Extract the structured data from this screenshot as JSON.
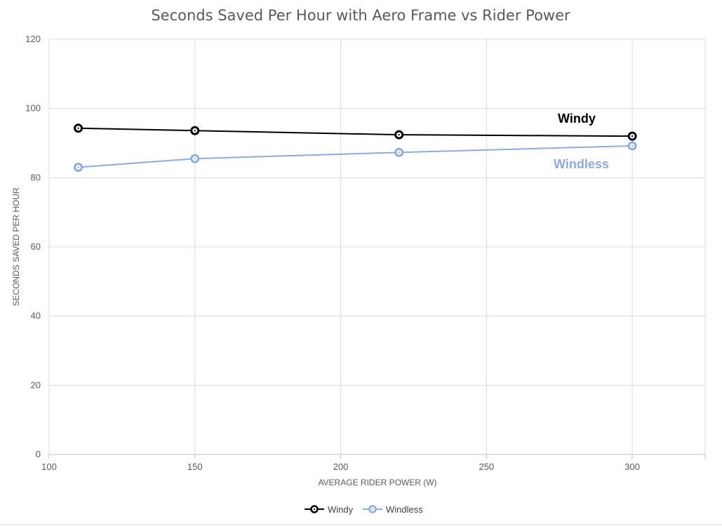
{
  "chart_data": {
    "type": "line",
    "title": "Seconds Saved Per Hour with Aero Frame vs Rider Power",
    "xlabel": "AVERAGE RIDER POWER (W)",
    "ylabel": "SECONDS SAVED PER HOUR",
    "xlim": [
      100,
      325
    ],
    "ylim": [
      0,
      120
    ],
    "xticks": [
      100,
      150,
      200,
      250,
      300
    ],
    "yticks": [
      0,
      20,
      40,
      60,
      80,
      100,
      120
    ],
    "grid": true,
    "legend_position": "bottom",
    "series": [
      {
        "name": "Windy",
        "color": "#000000",
        "x": [
          110,
          150,
          220,
          300
        ],
        "y": [
          94.3,
          93.6,
          92.4,
          92.0
        ]
      },
      {
        "name": "Windless",
        "color": "#8faadc",
        "x": [
          110,
          150,
          220,
          300
        ],
        "y": [
          83.0,
          85.5,
          87.3,
          89.2
        ]
      }
    ],
    "annotations": [
      {
        "text": "Windy",
        "color": "#000000"
      },
      {
        "text": "Windless",
        "color": "#8faadc"
      }
    ]
  }
}
